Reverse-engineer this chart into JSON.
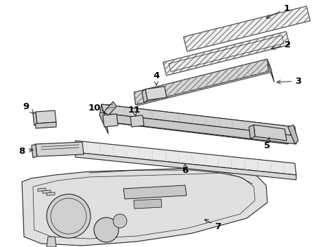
{
  "bg_color": "#ffffff",
  "line_color": "#222222",
  "label_color": "#000000",
  "label_font_size": 9.5
}
